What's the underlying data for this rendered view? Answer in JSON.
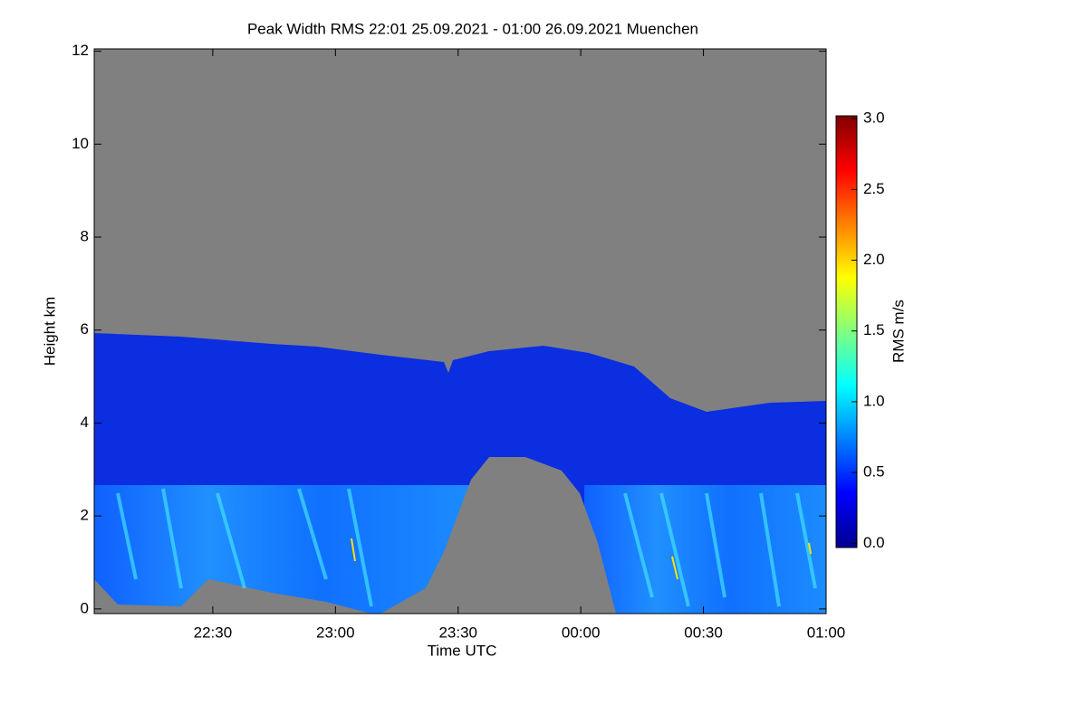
{
  "chart_data": {
    "type": "heatmap",
    "title": "Peak Width RMS   22:01 25.09.2021 - 01:00 26.09.2021 Muenchen",
    "xlabel": "Time UTC",
    "ylabel": "Height km",
    "xlim": [
      22.0167,
      25.0
    ],
    "xticks": [
      {
        "value": 22.5,
        "label": "22:30"
      },
      {
        "value": 23.0,
        "label": "23:00"
      },
      {
        "value": 23.5,
        "label": "23:30"
      },
      {
        "value": 24.0,
        "label": "00:00"
      },
      {
        "value": 24.5,
        "label": "00:30"
      },
      {
        "value": 25.0,
        "label": "01:00"
      }
    ],
    "ylim": [
      -0.1,
      12.05
    ],
    "yticks": [
      0,
      2,
      4,
      6,
      8,
      10,
      12
    ],
    "colorbar": {
      "label": "RMS m/s",
      "lim": [
        -0.03,
        3.02
      ],
      "ticks": [
        {
          "value": 0,
          "label": "0.0"
        },
        {
          "value": 0.5,
          "label": "0.5"
        },
        {
          "value": 1,
          "label": "1.0"
        },
        {
          "value": 1.5,
          "label": "1.5"
        },
        {
          "value": 2,
          "label": "2.0"
        },
        {
          "value": 2.5,
          "label": "2.5"
        },
        {
          "value": 3,
          "label": "3.0"
        }
      ]
    }
  }
}
